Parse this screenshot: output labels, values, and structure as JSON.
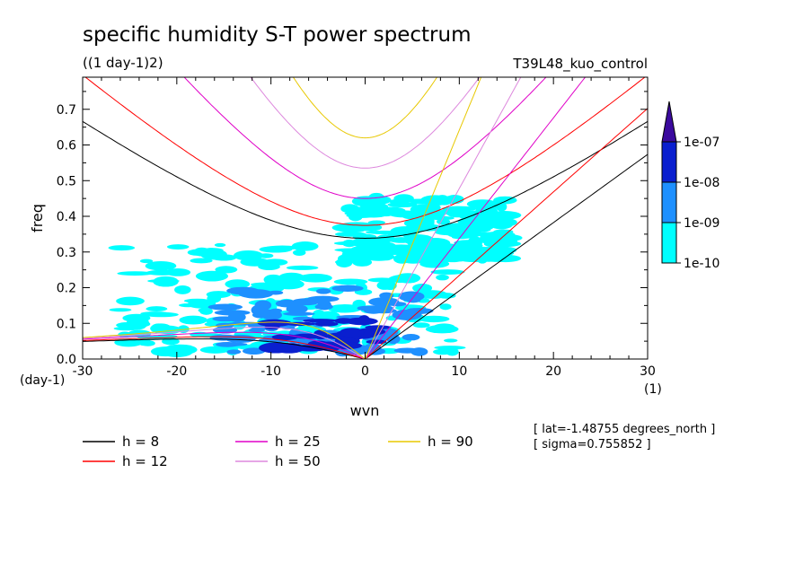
{
  "chart_data": {
    "type": "heatmap",
    "title": "specific humidity S-T power spectrum",
    "subtitle": "((1 day-1)2)",
    "run_label": "T39L48_kuo_control",
    "xlabel": "wvn",
    "ylabel": "freq",
    "x_unit": "(1)",
    "y_unit": "(day-1)",
    "xlim": [
      -30,
      30
    ],
    "ylim": [
      0,
      0.79
    ],
    "x_ticks": [
      -30,
      -20,
      -10,
      0,
      10,
      20,
      30
    ],
    "x_tick_labels": [
      "-30",
      "-20",
      "-10",
      "0",
      "10",
      "20",
      "30"
    ],
    "y_ticks": [
      0,
      0.1,
      0.2,
      0.3,
      0.4,
      0.5,
      0.6,
      0.7
    ],
    "y_tick_labels": [
      "0.0",
      "0.1",
      "0.2",
      "0.3",
      "0.4",
      "0.5",
      "0.6",
      "0.7"
    ],
    "colorbar": {
      "levels": [
        "1e-10",
        "1e-09",
        "1e-08",
        "1e-07"
      ],
      "colors": [
        "#00ffff",
        "#1e90ff",
        "#0a1fcf",
        "#3b0a9e"
      ]
    },
    "contour_regions": [
      {
        "level": "1e-10",
        "x": [
          -26,
          10
        ],
        "y": [
          0.02,
          0.32
        ]
      },
      {
        "level": "1e-10",
        "x": [
          -2,
          15
        ],
        "y": [
          0.28,
          0.46
        ]
      },
      {
        "level": "1e-09",
        "x": [
          -15,
          6
        ],
        "y": [
          0.02,
          0.2
        ]
      },
      {
        "level": "1e-08",
        "x": [
          -10,
          2
        ],
        "y": [
          0.03,
          0.11
        ]
      }
    ],
    "dispersion_curves": [
      {
        "name": "h =  8",
        "color": "#000000"
      },
      {
        "name": "h = 12",
        "color": "#ff0000"
      },
      {
        "name": "h = 25",
        "color": "#e000c8"
      },
      {
        "name": "h = 50",
        "color": "#dd88dd"
      },
      {
        "name": "h = 90",
        "color": "#e8c800"
      }
    ],
    "annotations": [
      "[ lat=-1.48755 degrees_north ]",
      "[ sigma=0.755852 ]"
    ]
  }
}
